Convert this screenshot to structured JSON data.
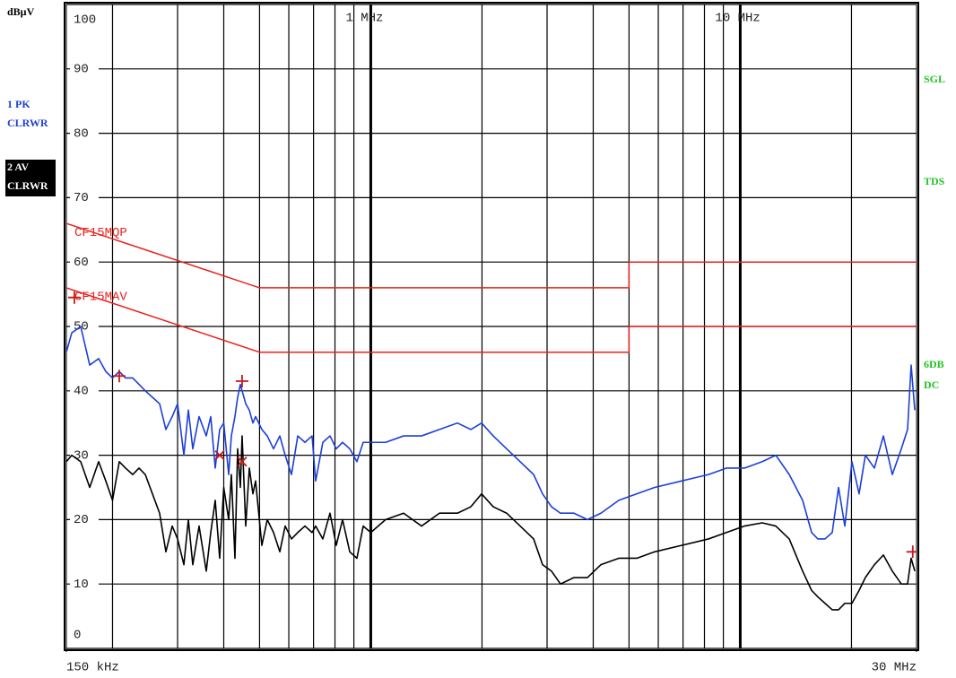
{
  "chart_data": {
    "type": "line",
    "y_unit_label": "dBµV",
    "xscale": "log",
    "xlim": [
      150000,
      30000000
    ],
    "ylim": [
      0,
      100
    ],
    "xticks": [
      {
        "value": 150000,
        "label": "150 kHz"
      },
      {
        "value": 1000000,
        "label": "1 MHz"
      },
      {
        "value": 10000000,
        "label": "10 MHz"
      },
      {
        "value": 30000000,
        "label": "30 MHz"
      }
    ],
    "xgrid": [
      200000,
      300000,
      400000,
      500000,
      600000,
      700000,
      800000,
      900000,
      2000000,
      3000000,
      4000000,
      5000000,
      6000000,
      7000000,
      8000000,
      9000000,
      20000000
    ],
    "yticks": [
      0,
      10,
      20,
      30,
      40,
      50,
      60,
      70,
      80,
      90,
      100
    ],
    "grid": true,
    "indicators": [
      "SGL",
      "TDS",
      "6DB",
      "DC"
    ],
    "x": [
      150000,
      155100,
      164000,
      173500,
      183400,
      191800,
      200000,
      208600,
      216900,
      226800,
      235900,
      245300,
      256500,
      268200,
      278900,
      290100,
      300000,
      312000,
      320800,
      329800,
      343000,
      358700,
      368900,
      379300,
      390000,
      400000,
      412500,
      419400,
      428900,
      436200,
      443600,
      448500,
      458700,
      469100,
      479700,
      487800,
      507200,
      524600,
      545500,
      567300,
      586600,
      610100,
      634400,
      663400,
      693600,
      709300,
      741700,
      775600,
      806500,
      838700,
      877200,
      917200,
      953900,
      1000000,
      1097000,
      1227000,
      1372000,
      1534000,
      1716000,
      1866000,
      1995000,
      2145000,
      2332000,
      2537000,
      2759000,
      2917000,
      3084000,
      3262000,
      3548000,
      3858000,
      4196000,
      4691000,
      5247000,
      5866000,
      6936000,
      8205000,
      9172000,
      10260000,
      11470000,
      12480000,
      13570000,
      14750000,
      15600000,
      16220000,
      16960000,
      17740000,
      18450000,
      19190000,
      20060000,
      20970000,
      21810000,
      23070000,
      24400000,
      25800000,
      27290000,
      28370000,
      29010000,
      29670000
    ],
    "series": [
      {
        "name": "1 PK",
        "mode": "CLRWR",
        "color": "#1c3fd8",
        "text_color": "#1c3fd8",
        "highlight": false,
        "values": [
          46,
          49,
          50,
          44,
          45,
          43,
          42,
          43,
          42,
          42,
          41,
          40,
          39,
          38,
          34,
          36,
          38,
          30,
          37,
          31,
          36,
          33,
          36,
          28,
          34,
          35,
          27,
          33,
          36,
          39,
          41,
          40,
          38,
          37,
          35,
          36,
          34,
          33,
          31,
          33,
          30,
          27,
          33,
          32,
          33,
          26,
          32,
          33,
          31,
          32,
          31,
          29,
          32,
          32,
          32,
          33,
          33,
          34,
          35,
          34,
          35,
          33,
          31,
          29,
          27,
          24,
          22,
          21,
          21,
          20,
          21,
          23,
          24,
          25,
          26,
          27,
          28,
          28,
          29,
          30,
          27,
          23,
          18,
          17,
          17,
          18,
          25,
          19,
          29,
          24,
          30,
          28,
          33,
          27,
          31,
          34,
          44,
          37
        ]
      },
      {
        "name": "2 AV",
        "mode": "CLRWR",
        "color": "#000000",
        "text_color": "#ffffff",
        "highlight": true,
        "values": [
          29,
          30,
          29,
          25,
          29,
          26,
          23,
          29,
          28,
          27,
          28,
          27,
          24,
          21,
          15,
          19,
          17,
          13,
          20,
          13,
          19,
          12,
          18,
          23,
          14,
          25,
          20,
          27,
          14,
          31,
          25,
          33,
          19,
          28,
          24,
          26,
          16,
          20,
          18,
          15,
          19,
          17,
          18,
          19,
          18,
          19,
          17,
          21,
          16,
          20,
          15,
          14,
          19,
          18,
          20,
          21,
          19,
          21,
          21,
          22,
          24,
          22,
          21,
          19,
          17,
          13,
          12,
          10,
          11,
          11,
          13,
          14,
          14,
          15,
          16,
          17,
          18,
          19,
          19.5,
          19,
          17,
          12,
          9,
          8,
          7,
          6,
          6,
          7,
          7,
          9,
          11,
          13,
          14.5,
          12,
          10,
          10,
          14,
          12
        ]
      }
    ],
    "limit_lines": [
      {
        "name": "CF15MQP",
        "color": "#e8231e",
        "x": [
          150000,
          500000,
          5000000,
          5000000,
          30000000
        ],
        "values": [
          66,
          56,
          56,
          60,
          60
        ]
      },
      {
        "name": "CF15MAV",
        "color": "#e8231e",
        "x": [
          150000,
          500000,
          5000000,
          5000000,
          30000000
        ],
        "values": [
          56,
          46,
          46,
          50,
          50
        ]
      }
    ],
    "markers": [
      {
        "shape": "plus",
        "color": "#c81818",
        "x": [
          157700,
          208600,
          448500,
          29300000
        ],
        "values": [
          54.5,
          42.3,
          41.5,
          15
        ]
      },
      {
        "shape": "cross",
        "color": "#c81818",
        "x": [
          390000,
          448500
        ],
        "values": [
          30,
          29
        ]
      }
    ]
  }
}
